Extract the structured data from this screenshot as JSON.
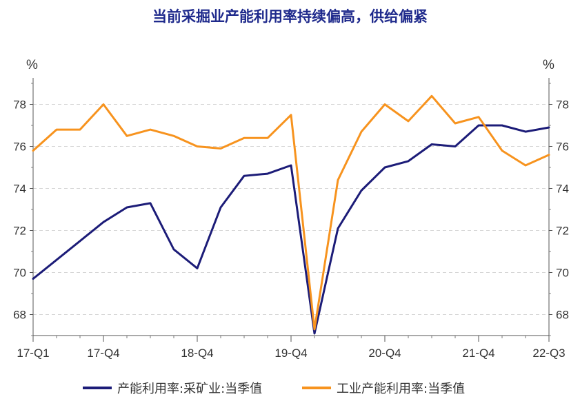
{
  "chart_data": {
    "type": "line",
    "title": "当前采掘业产能利用率持续偏高，供给偏紧",
    "y_unit_left": "%",
    "y_unit_right": "%",
    "ylim": [
      67,
      79
    ],
    "yticks": [
      68,
      70,
      72,
      74,
      76,
      78
    ],
    "grid": true,
    "x_tick_labels": [
      "17-Q1",
      "17-Q4",
      "18-Q4",
      "19-Q4",
      "20-Q4",
      "21-Q4",
      "22-Q3"
    ],
    "x_tick_index": [
      0,
      3,
      7,
      11,
      15,
      19,
      22
    ],
    "categories": [
      "17-Q1",
      "17-Q2",
      "17-Q3",
      "17-Q4",
      "18-Q1",
      "18-Q2",
      "18-Q3",
      "18-Q4",
      "19-Q1",
      "19-Q2",
      "19-Q3",
      "19-Q4",
      "20-Q1",
      "20-Q2",
      "20-Q3",
      "20-Q4",
      "21-Q1",
      "21-Q2",
      "21-Q3",
      "21-Q4",
      "22-Q1",
      "22-Q2",
      "22-Q3"
    ],
    "legend_position": "bottom",
    "series": [
      {
        "name": "产能利用率:采矿业:当季值",
        "color": "#1c1c78",
        "values": [
          69.7,
          70.6,
          71.5,
          72.4,
          73.1,
          73.3,
          71.1,
          70.2,
          73.1,
          74.6,
          74.7,
          75.1,
          67.1,
          72.1,
          73.9,
          75.0,
          75.3,
          76.1,
          76.0,
          77.0,
          77.0,
          76.7,
          76.9
        ]
      },
      {
        "name": "工业产能利用率:当季值",
        "color": "#f7931e",
        "values": [
          75.8,
          76.8,
          76.8,
          78.0,
          76.5,
          76.8,
          76.5,
          76.0,
          75.9,
          76.4,
          76.4,
          77.5,
          67.3,
          74.4,
          76.7,
          78.0,
          77.2,
          78.4,
          77.1,
          77.4,
          75.8,
          75.1,
          75.6
        ]
      }
    ]
  }
}
